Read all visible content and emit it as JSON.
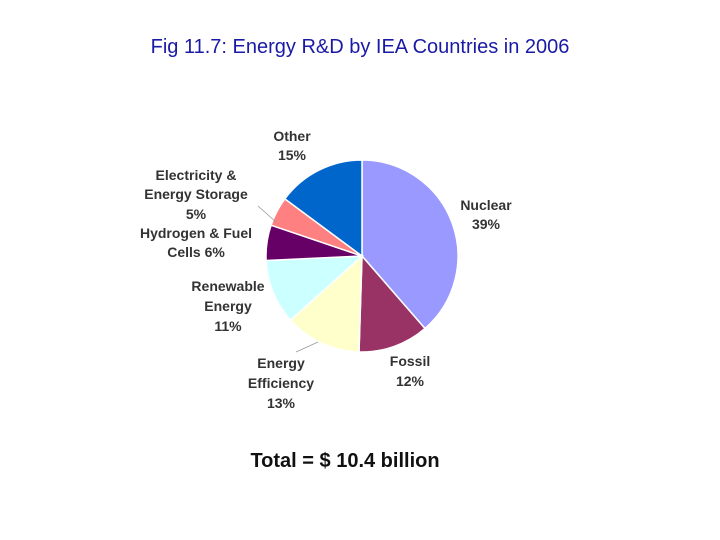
{
  "chart_data": {
    "type": "pie",
    "title": "Fig 11.7: Energy R&D by IEA Countries in 2006",
    "total_label": "Total = $ 10.4 billion",
    "slices": [
      {
        "name": "Nuclear",
        "value": 39,
        "value_label": "39%",
        "color": "#9999ff"
      },
      {
        "name": "Fossil",
        "value": 12,
        "value_label": "12%",
        "color": "#993366"
      },
      {
        "name": "Energy Efficiency",
        "value": 13,
        "value_label": "13%",
        "color": "#ffffcc"
      },
      {
        "name": "Renewable Energy",
        "value": 11,
        "value_label": "11%",
        "color": "#ccffff"
      },
      {
        "name": "Hydrogen & Fuel Cells",
        "value": 6,
        "value_label": "6%",
        "color": "#660066"
      },
      {
        "name": "Electricity & Energy Storage",
        "value": 5,
        "value_label": "5%",
        "color": "#ff8080"
      },
      {
        "name": "Other",
        "value": 15,
        "value_label": "15%",
        "color": "#0066cc"
      }
    ]
  }
}
